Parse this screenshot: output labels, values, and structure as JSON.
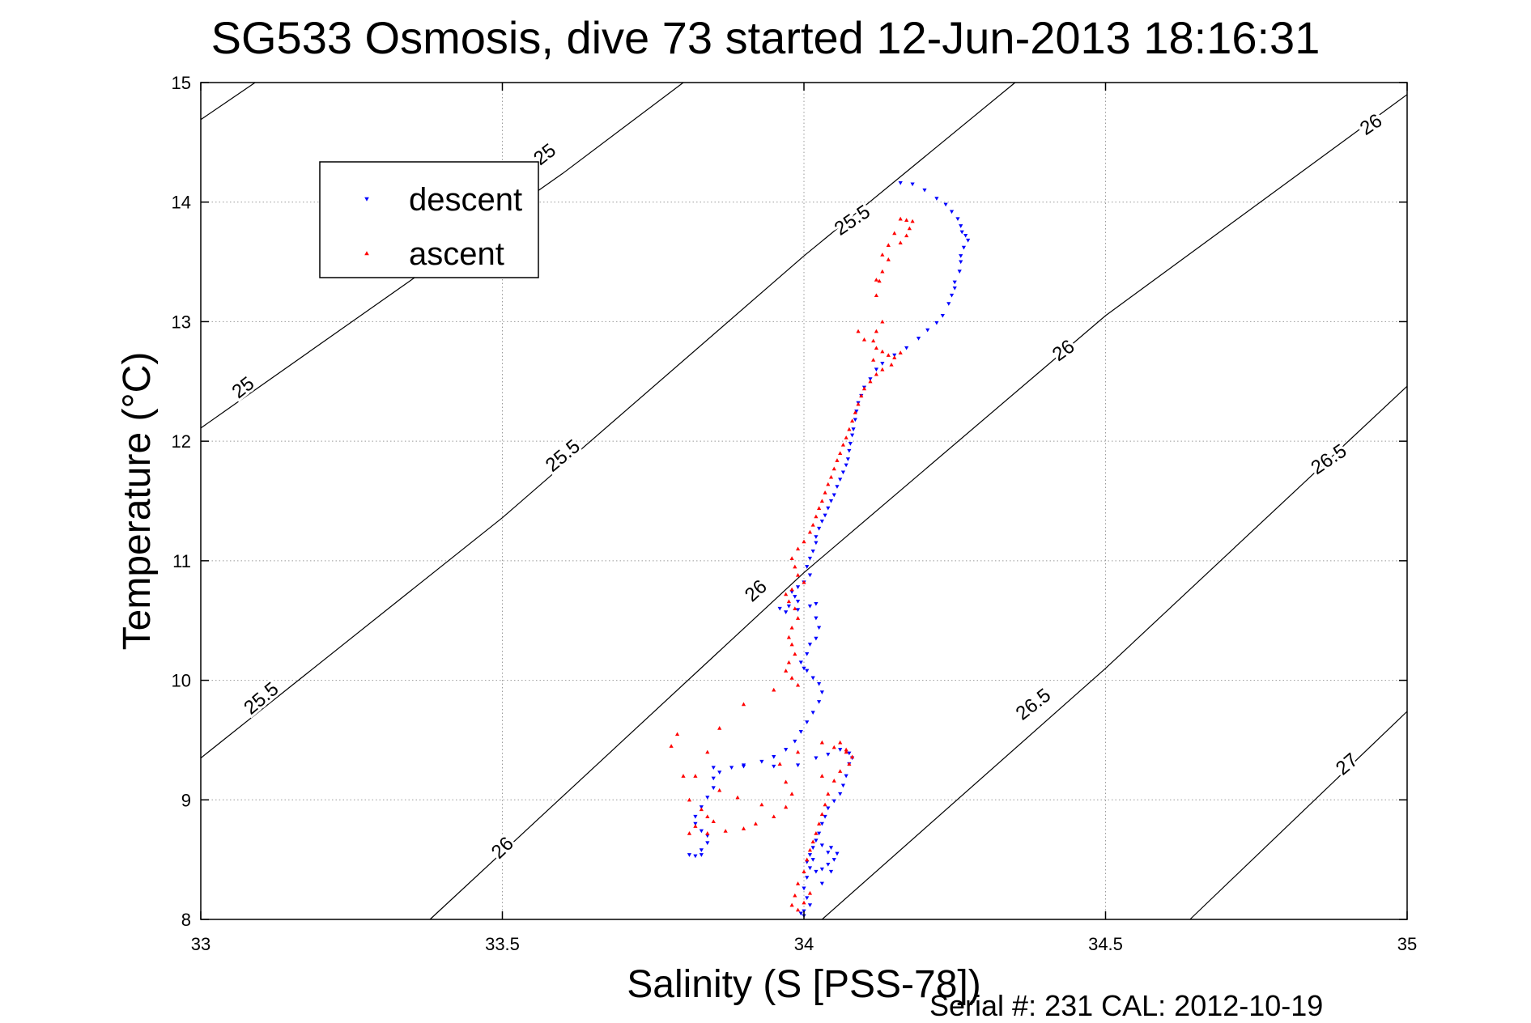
{
  "chart_data": {
    "type": "scatter",
    "title": "SG533 Osmosis, dive 73 started 12-Jun-2013 18:16:31",
    "xlabel": "Salinity (S [PSS-78])",
    "ylabel": "Temperature (°C)",
    "xlim": [
      33,
      35
    ],
    "ylim": [
      8,
      15
    ],
    "xticks": [
      "33",
      "33.5",
      "34",
      "34.5",
      "35"
    ],
    "yticks": [
      "8",
      "9",
      "10",
      "11",
      "12",
      "13",
      "14",
      "15"
    ],
    "grid": true,
    "legend": {
      "placement": "top-left",
      "entries": [
        "descent",
        "ascent"
      ]
    },
    "colors": {
      "descent": "#0000ff",
      "ascent": "#ff0000",
      "contour": "#000000"
    },
    "contours": [
      {
        "level": "25",
        "points": [
          [
            33,
            14.69
          ],
          [
            33.09,
            15
          ]
        ]
      },
      {
        "level": "25",
        "points": [
          [
            33,
            12.11
          ],
          [
            33.6,
            14.24
          ],
          [
            33.8,
            15
          ]
        ]
      },
      {
        "level": "25.5",
        "points": [
          [
            33,
            9.35
          ],
          [
            33.5,
            11.36
          ],
          [
            34,
            13.55
          ],
          [
            34.35,
            15
          ]
        ]
      },
      {
        "level": "26",
        "points": [
          [
            33.38,
            8
          ],
          [
            34,
            10.9
          ],
          [
            34.5,
            13.05
          ],
          [
            35,
            14.9
          ]
        ]
      },
      {
        "level": "26.5",
        "points": [
          [
            34.03,
            8
          ],
          [
            34.5,
            10.1
          ],
          [
            35,
            12.46
          ]
        ]
      },
      {
        "level": "27",
        "points": [
          [
            34.64,
            8
          ],
          [
            35,
            9.74
          ]
        ]
      }
    ],
    "contour_labels": [
      {
        "text": "25",
        "x": 33.57,
        "y": 14.4,
        "angle": -38
      },
      {
        "text": "25",
        "x": 33.07,
        "y": 12.45,
        "angle": -38
      },
      {
        "text": "25.5",
        "x": 34.08,
        "y": 13.85,
        "angle": -34
      },
      {
        "text": "25.5",
        "x": 33.6,
        "y": 11.88,
        "angle": -40
      },
      {
        "text": "25.5",
        "x": 33.1,
        "y": 9.85,
        "angle": -40
      },
      {
        "text": "26",
        "x": 34.94,
        "y": 14.65,
        "angle": -34
      },
      {
        "text": "26",
        "x": 34.43,
        "y": 12.76,
        "angle": -36
      },
      {
        "text": "26",
        "x": 33.92,
        "y": 10.75,
        "angle": -42
      },
      {
        "text": "26",
        "x": 33.5,
        "y": 8.6,
        "angle": -44
      },
      {
        "text": "26.5",
        "x": 34.87,
        "y": 11.85,
        "angle": -34
      },
      {
        "text": "26.5",
        "x": 34.38,
        "y": 9.8,
        "angle": -38
      },
      {
        "text": "27",
        "x": 34.9,
        "y": 9.3,
        "angle": -40
      }
    ],
    "series": [
      {
        "name": "descent",
        "marker": "triangle-down",
        "points": [
          [
            34.16,
            14.16
          ],
          [
            34.18,
            14.15
          ],
          [
            34.2,
            14.1
          ],
          [
            34.22,
            14.03
          ],
          [
            34.235,
            13.98
          ],
          [
            34.245,
            13.92
          ],
          [
            34.255,
            13.86
          ],
          [
            34.26,
            13.8
          ],
          [
            34.262,
            13.75
          ],
          [
            34.268,
            13.72
          ],
          [
            34.272,
            13.68
          ],
          [
            34.265,
            13.62
          ],
          [
            34.26,
            13.55
          ],
          [
            34.26,
            13.5
          ],
          [
            34.258,
            13.42
          ],
          [
            34.25,
            13.33
          ],
          [
            34.25,
            13.28
          ],
          [
            34.245,
            13.22
          ],
          [
            34.24,
            13.15
          ],
          [
            34.23,
            13.05
          ],
          [
            34.22,
            12.99
          ],
          [
            34.205,
            12.93
          ],
          [
            34.19,
            12.86
          ],
          [
            34.17,
            12.78
          ],
          [
            34.15,
            12.72
          ],
          [
            34.13,
            12.65
          ],
          [
            34.12,
            12.6
          ],
          [
            34.11,
            12.52
          ],
          [
            34.1,
            12.45
          ],
          [
            34.095,
            12.38
          ],
          [
            34.09,
            12.32
          ],
          [
            34.087,
            12.25
          ],
          [
            34.085,
            12.18
          ],
          [
            34.082,
            12.1
          ],
          [
            34.08,
            12.05
          ],
          [
            34.077,
            11.98
          ],
          [
            34.075,
            11.92
          ],
          [
            34.073,
            11.85
          ],
          [
            34.07,
            11.8
          ],
          [
            34.065,
            11.74
          ],
          [
            34.06,
            11.68
          ],
          [
            34.055,
            11.62
          ],
          [
            34.05,
            11.55
          ],
          [
            34.045,
            11.5
          ],
          [
            34.04,
            11.44
          ],
          [
            34.035,
            11.38
          ],
          [
            34.03,
            11.33
          ],
          [
            34.025,
            11.27
          ],
          [
            34.02,
            11.2
          ],
          [
            34.02,
            11.15
          ],
          [
            34.015,
            11.08
          ],
          [
            34.01,
            11.02
          ],
          [
            34.005,
            10.95
          ],
          [
            34.01,
            10.88
          ],
          [
            34.0,
            10.82
          ],
          [
            33.99,
            10.78
          ],
          [
            33.98,
            10.74
          ],
          [
            33.985,
            10.7
          ],
          [
            33.99,
            10.66
          ],
          [
            33.975,
            10.62
          ],
          [
            33.96,
            10.6
          ],
          [
            33.97,
            10.57
          ],
          [
            33.99,
            10.59
          ],
          [
            34.01,
            10.62
          ],
          [
            34.02,
            10.64
          ],
          [
            34.02,
            10.52
          ],
          [
            34.025,
            10.44
          ],
          [
            34.02,
            10.35
          ],
          [
            34.01,
            10.3
          ],
          [
            34.005,
            10.22
          ],
          [
            33.995,
            10.15
          ],
          [
            34.0,
            10.1
          ],
          [
            34.005,
            10.08
          ],
          [
            34.015,
            10.02
          ],
          [
            34.025,
            9.97
          ],
          [
            34.03,
            9.9
          ],
          [
            34.025,
            9.82
          ],
          [
            34.015,
            9.73
          ],
          [
            34.005,
            9.65
          ],
          [
            33.995,
            9.57
          ],
          [
            33.985,
            9.49
          ],
          [
            33.97,
            9.42
          ],
          [
            33.95,
            9.36
          ],
          [
            33.93,
            9.32
          ],
          [
            33.9,
            9.29
          ],
          [
            33.88,
            9.27
          ],
          [
            33.86,
            9.23
          ],
          [
            33.85,
            9.18
          ],
          [
            33.85,
            9.1
          ],
          [
            33.84,
            9.02
          ],
          [
            33.83,
            8.94
          ],
          [
            33.82,
            8.86
          ],
          [
            33.82,
            8.8
          ],
          [
            33.83,
            8.74
          ],
          [
            33.84,
            8.7
          ],
          [
            33.84,
            8.64
          ],
          [
            33.83,
            8.58
          ],
          [
            33.83,
            8.54
          ],
          [
            33.82,
            8.53
          ],
          [
            33.81,
            8.54
          ],
          [
            33.85,
            9.27
          ],
          [
            33.9,
            9.28
          ],
          [
            33.95,
            9.28
          ],
          [
            33.99,
            9.29
          ],
          [
            34.02,
            9.35
          ],
          [
            34.04,
            9.38
          ],
          [
            34.06,
            9.42
          ],
          [
            34.075,
            9.39
          ],
          [
            34.08,
            9.35
          ],
          [
            34.075,
            9.3
          ],
          [
            34.07,
            9.2
          ],
          [
            34.065,
            9.12
          ],
          [
            34.06,
            9.05
          ],
          [
            34.05,
            8.99
          ],
          [
            34.04,
            8.93
          ],
          [
            34.035,
            8.86
          ],
          [
            34.03,
            8.8
          ],
          [
            34.025,
            8.72
          ],
          [
            34.02,
            8.66
          ],
          [
            34.015,
            8.6
          ],
          [
            34.01,
            8.54
          ],
          [
            34.005,
            8.48
          ],
          [
            34.01,
            8.43
          ],
          [
            34.02,
            8.4
          ],
          [
            34.03,
            8.42
          ],
          [
            34.04,
            8.46
          ],
          [
            34.05,
            8.5
          ],
          [
            34.055,
            8.55
          ],
          [
            34.045,
            8.6
          ],
          [
            34.03,
            8.62
          ],
          [
            34.015,
            8.5
          ],
          [
            34.005,
            8.35
          ],
          [
            34.0,
            8.26
          ],
          [
            34.005,
            8.18
          ],
          [
            34.01,
            8.12
          ],
          [
            34.0,
            8.07
          ],
          [
            33.995,
            8.05
          ],
          [
            34.0,
            8.03
          ],
          [
            34.03,
            8.3
          ],
          [
            34.045,
            8.4
          ],
          [
            34.04,
            8.56
          ]
        ]
      },
      {
        "name": "ascent",
        "marker": "triangle-up",
        "points": [
          [
            34.16,
            13.86
          ],
          [
            34.17,
            13.85
          ],
          [
            34.18,
            13.84
          ],
          [
            34.175,
            13.78
          ],
          [
            34.17,
            13.72
          ],
          [
            34.16,
            13.66
          ],
          [
            34.15,
            13.74
          ],
          [
            34.14,
            13.64
          ],
          [
            34.14,
            13.52
          ],
          [
            34.13,
            13.42
          ],
          [
            34.125,
            13.34
          ],
          [
            34.12,
            13.22
          ],
          [
            34.13,
            13.0
          ],
          [
            34.12,
            12.92
          ],
          [
            34.115,
            12.84
          ],
          [
            34.12,
            12.78
          ],
          [
            34.13,
            12.75
          ],
          [
            34.14,
            12.72
          ],
          [
            34.15,
            12.7
          ],
          [
            34.145,
            12.64
          ],
          [
            34.13,
            12.6
          ],
          [
            34.12,
            12.56
          ],
          [
            34.11,
            12.5
          ],
          [
            34.1,
            12.44
          ],
          [
            34.095,
            12.38
          ],
          [
            34.09,
            12.31
          ],
          [
            34.085,
            12.24
          ],
          [
            34.08,
            12.17
          ],
          [
            34.075,
            12.1
          ],
          [
            34.07,
            12.03
          ],
          [
            34.065,
            11.97
          ],
          [
            34.06,
            11.9
          ],
          [
            34.055,
            11.84
          ],
          [
            34.05,
            11.77
          ],
          [
            34.045,
            11.7
          ],
          [
            34.04,
            11.64
          ],
          [
            34.035,
            11.57
          ],
          [
            34.03,
            11.5
          ],
          [
            34.025,
            11.44
          ],
          [
            34.02,
            11.37
          ],
          [
            34.015,
            11.3
          ],
          [
            34.01,
            11.24
          ],
          [
            34.0,
            11.16
          ],
          [
            33.99,
            11.1
          ],
          [
            33.98,
            11.02
          ],
          [
            33.985,
            10.95
          ],
          [
            33.99,
            10.88
          ],
          [
            34.0,
            10.82
          ],
          [
            33.98,
            10.76
          ],
          [
            33.97,
            10.72
          ],
          [
            33.975,
            10.66
          ],
          [
            33.985,
            10.6
          ],
          [
            33.99,
            10.52
          ],
          [
            33.98,
            10.44
          ],
          [
            33.975,
            10.36
          ],
          [
            33.98,
            10.3
          ],
          [
            33.985,
            10.22
          ],
          [
            33.975,
            10.15
          ],
          [
            33.97,
            10.08
          ],
          [
            33.98,
            10.02
          ],
          [
            33.99,
            9.96
          ],
          [
            33.95,
            9.92
          ],
          [
            33.9,
            9.8
          ],
          [
            33.86,
            9.6
          ],
          [
            33.84,
            9.4
          ],
          [
            33.82,
            9.2
          ],
          [
            33.81,
            9.0
          ],
          [
            33.83,
            8.92
          ],
          [
            33.84,
            8.86
          ],
          [
            33.85,
            8.82
          ],
          [
            33.82,
            8.78
          ],
          [
            33.81,
            8.72
          ],
          [
            33.84,
            8.72
          ],
          [
            33.87,
            8.74
          ],
          [
            33.9,
            8.76
          ],
          [
            33.92,
            8.8
          ],
          [
            33.95,
            8.86
          ],
          [
            33.97,
            8.94
          ],
          [
            33.98,
            9.05
          ],
          [
            33.97,
            9.15
          ],
          [
            33.96,
            9.3
          ],
          [
            33.99,
            9.4
          ],
          [
            34.03,
            9.48
          ],
          [
            34.05,
            9.44
          ],
          [
            34.07,
            9.4
          ],
          [
            34.08,
            9.36
          ],
          [
            34.075,
            9.3
          ],
          [
            34.06,
            9.24
          ],
          [
            34.05,
            9.16
          ],
          [
            34.04,
            9.05
          ],
          [
            34.035,
            8.96
          ],
          [
            34.03,
            8.88
          ],
          [
            34.025,
            8.8
          ],
          [
            34.02,
            8.72
          ],
          [
            34.015,
            8.65
          ],
          [
            34.01,
            8.58
          ],
          [
            34.005,
            8.5
          ],
          [
            34.0,
            8.4
          ],
          [
            33.99,
            8.3
          ],
          [
            33.985,
            8.2
          ],
          [
            33.98,
            8.12
          ],
          [
            33.99,
            8.08
          ],
          [
            34.0,
            8.14
          ],
          [
            34.01,
            8.22
          ],
          [
            34.07,
            9.42
          ],
          [
            34.06,
            9.48
          ],
          [
            33.79,
            9.55
          ],
          [
            33.78,
            9.45
          ],
          [
            33.8,
            9.2
          ],
          [
            33.86,
            9.08
          ],
          [
            33.89,
            9.02
          ],
          [
            33.93,
            8.96
          ],
          [
            34.03,
            9.2
          ],
          [
            34.09,
            12.92
          ],
          [
            34.1,
            12.85
          ],
          [
            34.115,
            12.68
          ],
          [
            34.16,
            12.74
          ],
          [
            34.12,
            13.35
          ],
          [
            34.13,
            13.56
          ]
        ]
      }
    ]
  },
  "footer": {
    "text": "Serial #: 231  CAL: 2012-10-19"
  }
}
